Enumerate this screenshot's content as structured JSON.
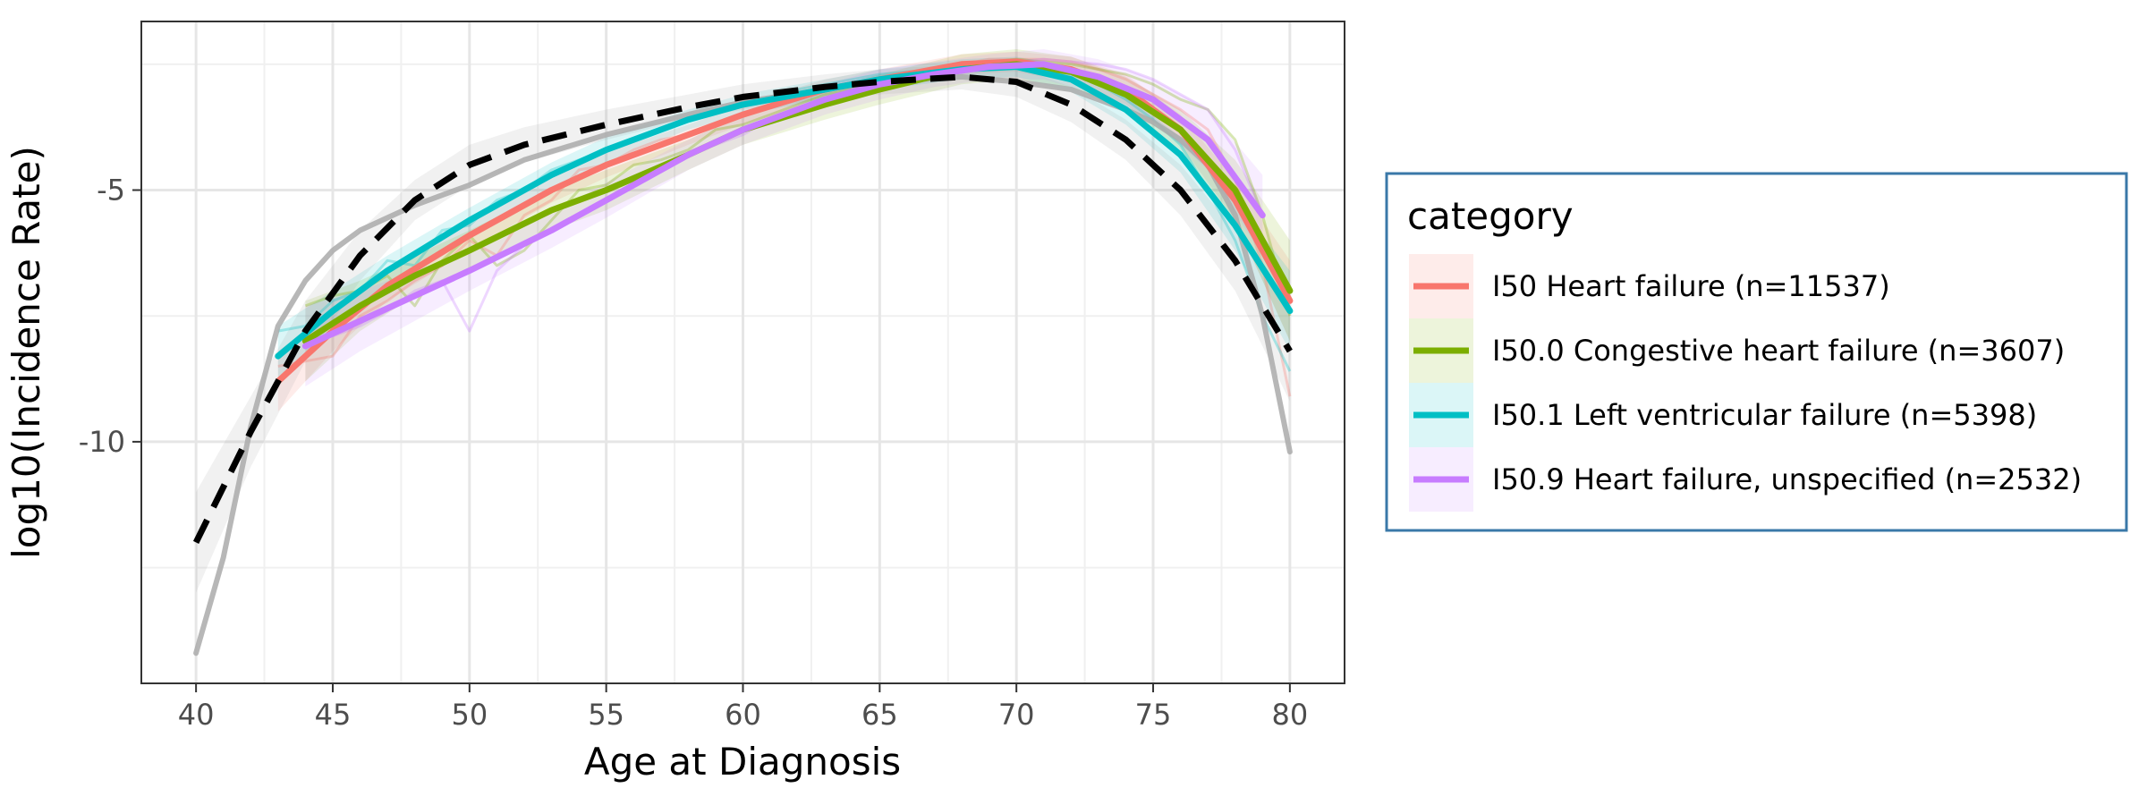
{
  "chart_data": {
    "type": "line",
    "title": "",
    "xlabel": "Age at Diagnosis",
    "ylabel": "log10(Incidence Rate)",
    "xlim": [
      38,
      82
    ],
    "ylim": [
      -14.8,
      -1.65
    ],
    "x_ticks": [
      40,
      45,
      50,
      55,
      60,
      65,
      70,
      75,
      80
    ],
    "y_ticks": [
      -5,
      -10
    ],
    "y_tick_labels": [
      "-5",
      "-10"
    ],
    "grid": true,
    "legend": {
      "title": "category",
      "position": "right",
      "items": [
        {
          "label": "I50 Heart failure (n=11537)",
          "color": "#F8766D"
        },
        {
          "label": "I50.0 Congestive heart failure (n=3607)",
          "color": "#7CAE00"
        },
        {
          "label": "I50.1 Left ventricular failure (n=5398)",
          "color": "#00BFC4"
        },
        {
          "label": "I50.9 Heart failure, unspecified (n=2532)",
          "color": "#C77CFF"
        }
      ]
    },
    "series": [
      {
        "name": "I50 Heart failure (n=11537)",
        "color": "#F8766D",
        "role": "smooth",
        "x": [
          43,
          45,
          47,
          50,
          53,
          55,
          58,
          60,
          63,
          65,
          68,
          70,
          72,
          74,
          76,
          78,
          80
        ],
        "y": [
          -8.8,
          -7.8,
          -6.9,
          -5.9,
          -5.0,
          -4.5,
          -3.9,
          -3.5,
          -3.0,
          -2.8,
          -2.5,
          -2.45,
          -2.6,
          -3.0,
          -3.8,
          -5.2,
          -7.2
        ]
      },
      {
        "name": "I50.0 Congestive heart failure (n=3607)",
        "color": "#7CAE00",
        "role": "smooth",
        "x": [
          44,
          46,
          48,
          50,
          53,
          55,
          58,
          60,
          63,
          65,
          68,
          70,
          72,
          74,
          76,
          78,
          80
        ],
        "y": [
          -8.0,
          -7.3,
          -6.7,
          -6.2,
          -5.4,
          -5.0,
          -4.3,
          -3.8,
          -3.3,
          -3.0,
          -2.6,
          -2.5,
          -2.65,
          -3.1,
          -3.8,
          -5.0,
          -7.0
        ]
      },
      {
        "name": "I50.1 Left ventricular failure (n=5398)",
        "color": "#00BFC4",
        "role": "smooth",
        "x": [
          43,
          45,
          47,
          50,
          53,
          55,
          58,
          60,
          63,
          65,
          68,
          70,
          72,
          74,
          76,
          78,
          80
        ],
        "y": [
          -8.3,
          -7.4,
          -6.6,
          -5.6,
          -4.7,
          -4.2,
          -3.6,
          -3.3,
          -3.0,
          -2.8,
          -2.6,
          -2.55,
          -2.8,
          -3.4,
          -4.3,
          -5.7,
          -7.4
        ]
      },
      {
        "name": "I50.9 Heart failure, unspecified (n=2532)",
        "color": "#C77CFF",
        "role": "smooth",
        "x": [
          44,
          46,
          48,
          50,
          53,
          55,
          58,
          60,
          63,
          65,
          67,
          69,
          71,
          73,
          75,
          77,
          79
        ],
        "y": [
          -8.1,
          -7.6,
          -7.1,
          -6.6,
          -5.8,
          -5.2,
          -4.3,
          -3.8,
          -3.2,
          -2.9,
          -2.7,
          -2.55,
          -2.5,
          -2.75,
          -3.2,
          -4.0,
          -5.5
        ]
      },
      {
        "name": "",
        "color": "#000000",
        "role": "overall-dashed",
        "x": [
          40,
          42,
          44,
          46,
          48,
          50,
          52,
          55,
          58,
          60,
          63,
          65,
          68,
          70,
          72,
          74,
          76,
          78,
          80
        ],
        "y": [
          -12.0,
          -9.8,
          -7.8,
          -6.3,
          -5.2,
          -4.5,
          -4.1,
          -3.7,
          -3.35,
          -3.15,
          -2.95,
          -2.85,
          -2.75,
          -2.85,
          -3.3,
          -4.0,
          -5.0,
          -6.4,
          -8.2
        ]
      },
      {
        "name": "",
        "color": "#aaaaaa",
        "role": "overall-raw",
        "x": [
          40,
          41,
          42,
          43,
          44,
          45,
          46,
          48,
          50,
          52,
          55,
          58,
          60,
          63,
          65,
          68,
          70,
          72,
          74,
          75,
          76,
          77,
          78,
          79,
          80
        ],
        "y": [
          -14.2,
          -12.3,
          -9.7,
          -7.7,
          -6.8,
          -6.2,
          -5.8,
          -5.3,
          -4.9,
          -4.4,
          -3.9,
          -3.5,
          -3.25,
          -3.0,
          -2.85,
          -2.75,
          -2.85,
          -3.0,
          -3.4,
          -3.65,
          -4.0,
          -4.5,
          -5.5,
          -7.5,
          -10.2
        ]
      }
    ],
    "raw_series": [
      {
        "color": "#F8766D",
        "x": [
          43,
          44,
          45,
          46,
          47,
          48,
          49,
          50,
          51,
          52,
          53,
          54,
          55,
          56,
          57,
          58,
          59,
          60,
          61,
          62,
          63,
          64,
          65,
          66,
          67,
          68,
          69,
          70,
          71,
          72,
          73,
          74,
          75,
          76,
          77,
          78,
          79,
          80
        ],
        "y": [
          -8.5,
          -8.4,
          -8.3,
          -7.5,
          -7.2,
          -6.8,
          -6.5,
          -6.0,
          -6.3,
          -5.5,
          -5.2,
          -4.6,
          -4.5,
          -4.2,
          -4.0,
          -3.9,
          -3.7,
          -3.5,
          -3.3,
          -3.1,
          -3.0,
          -2.9,
          -2.8,
          -2.7,
          -2.6,
          -2.5,
          -2.4,
          -2.4,
          -2.4,
          -2.45,
          -2.6,
          -2.8,
          -3.1,
          -3.4,
          -3.8,
          -4.8,
          -6.5,
          -9.1
        ]
      },
      {
        "color": "#7CAE00",
        "x": [
          44,
          45,
          46,
          47,
          48,
          49,
          50,
          51,
          52,
          53,
          54,
          55,
          56,
          57,
          58,
          59,
          60,
          61,
          62,
          63,
          64,
          65,
          66,
          67,
          68,
          69,
          70,
          71,
          72,
          73,
          74,
          75,
          76,
          77,
          78,
          79,
          80
        ],
        "y": [
          -7.3,
          -7.1,
          -7.0,
          -6.7,
          -7.3,
          -6.4,
          -5.9,
          -6.5,
          -6.2,
          -5.6,
          -5.0,
          -4.9,
          -4.5,
          -4.4,
          -4.2,
          -3.8,
          -3.7,
          -3.5,
          -3.3,
          -3.1,
          -3.0,
          -2.9,
          -2.7,
          -2.6,
          -2.5,
          -2.45,
          -2.4,
          -2.45,
          -2.5,
          -2.6,
          -2.7,
          -2.9,
          -3.2,
          -3.4,
          -4.0,
          -5.5,
          -7.5
        ]
      },
      {
        "color": "#00BFC4",
        "x": [
          43,
          44,
          45,
          46,
          47,
          48,
          49,
          50,
          51,
          52,
          53,
          54,
          55,
          56,
          57,
          58,
          59,
          60,
          61,
          62,
          63,
          64,
          65,
          66,
          67,
          68,
          69,
          70,
          71,
          72,
          73,
          74,
          75,
          76,
          77,
          78,
          79,
          80
        ],
        "y": [
          -7.8,
          -7.7,
          -7.2,
          -7.0,
          -6.4,
          -6.5,
          -5.8,
          -5.7,
          -5.2,
          -5.0,
          -4.6,
          -4.4,
          -4.2,
          -4.0,
          -3.8,
          -3.6,
          -3.4,
          -3.3,
          -3.2,
          -3.0,
          -2.9,
          -2.8,
          -2.7,
          -2.65,
          -2.6,
          -2.55,
          -2.5,
          -2.5,
          -2.6,
          -2.7,
          -2.9,
          -3.2,
          -3.6,
          -4.1,
          -5.0,
          -6.0,
          -7.5,
          -8.6
        ]
      },
      {
        "color": "#C77CFF",
        "x": [
          44,
          45,
          46,
          47,
          48,
          49,
          50,
          51,
          52,
          53,
          54,
          55,
          56,
          57,
          58,
          59,
          60,
          61,
          62,
          63,
          64,
          65,
          66,
          67,
          68,
          69,
          70,
          71,
          72,
          73,
          74,
          75,
          76,
          77,
          78,
          79
        ],
        "y": [
          -8.0,
          -7.9,
          -7.7,
          -7.4,
          -7.0,
          -6.8,
          -7.8,
          -6.6,
          -6.1,
          -5.8,
          -5.5,
          -5.2,
          -4.9,
          -4.6,
          -4.3,
          -4.1,
          -3.9,
          -3.6,
          -3.4,
          -3.2,
          -3.0,
          -2.9,
          -2.8,
          -2.7,
          -2.6,
          -2.5,
          -2.45,
          -2.4,
          -2.45,
          -2.5,
          -2.6,
          -2.8,
          -3.1,
          -3.4,
          -4.2,
          -5.5
        ]
      }
    ],
    "bands": [
      {
        "color": "#F8766D",
        "x": [
          43,
          45,
          47,
          50,
          53,
          55,
          58,
          60,
          63,
          65,
          68,
          70,
          72,
          74,
          76,
          78,
          80
        ],
        "lower": [
          -9.4,
          -8.2,
          -7.2,
          -6.2,
          -5.25,
          -4.75,
          -4.1,
          -3.7,
          -3.2,
          -3.0,
          -2.7,
          -2.65,
          -2.85,
          -3.3,
          -4.1,
          -5.6,
          -8.0
        ],
        "upper": [
          -8.2,
          -7.4,
          -6.6,
          -5.6,
          -4.75,
          -4.25,
          -3.7,
          -3.3,
          -2.8,
          -2.6,
          -2.3,
          -2.25,
          -2.35,
          -2.7,
          -3.5,
          -4.8,
          -6.4
        ]
      },
      {
        "color": "#7CAE00",
        "x": [
          44,
          46,
          48,
          50,
          53,
          55,
          58,
          60,
          63,
          65,
          68,
          70,
          72,
          74,
          76,
          78,
          80
        ],
        "lower": [
          -8.8,
          -7.8,
          -7.1,
          -6.6,
          -5.8,
          -5.4,
          -4.6,
          -4.1,
          -3.6,
          -3.3,
          -2.9,
          -2.8,
          -2.95,
          -3.45,
          -4.2,
          -5.6,
          -8.0
        ],
        "upper": [
          -7.2,
          -6.8,
          -6.3,
          -5.8,
          -5.0,
          -4.6,
          -4.0,
          -3.5,
          -3.0,
          -2.7,
          -2.3,
          -2.2,
          -2.35,
          -2.75,
          -3.4,
          -4.4,
          -6.0
        ]
      },
      {
        "color": "#00BFC4",
        "x": [
          43,
          45,
          47,
          50,
          53,
          55,
          58,
          60,
          63,
          65,
          68,
          70,
          72,
          74,
          76,
          78,
          80
        ],
        "lower": [
          -8.9,
          -7.8,
          -6.9,
          -5.85,
          -4.95,
          -4.45,
          -3.8,
          -3.5,
          -3.2,
          -3.0,
          -2.8,
          -2.75,
          -3.05,
          -3.7,
          -4.65,
          -6.2,
          -8.2
        ],
        "upper": [
          -7.7,
          -7.0,
          -6.3,
          -5.35,
          -4.45,
          -3.95,
          -3.4,
          -3.1,
          -2.8,
          -2.6,
          -2.4,
          -2.35,
          -2.55,
          -3.1,
          -3.95,
          -5.2,
          -6.6
        ]
      },
      {
        "color": "#C77CFF",
        "x": [
          44,
          46,
          48,
          50,
          53,
          55,
          58,
          60,
          63,
          65,
          67,
          69,
          71,
          73,
          75,
          77,
          79
        ],
        "lower": [
          -8.9,
          -8.2,
          -7.6,
          -7.0,
          -6.15,
          -5.55,
          -4.6,
          -4.1,
          -3.5,
          -3.2,
          -2.95,
          -2.8,
          -2.8,
          -3.1,
          -3.6,
          -4.6,
          -6.3
        ],
        "upper": [
          -7.3,
          -7.0,
          -6.6,
          -6.2,
          -5.45,
          -4.85,
          -4.0,
          -3.5,
          -2.9,
          -2.6,
          -2.45,
          -2.3,
          -2.2,
          -2.4,
          -2.8,
          -3.4,
          -4.7
        ]
      },
      {
        "color": "#999999",
        "x": [
          40,
          42,
          44,
          46,
          48,
          50,
          52,
          55,
          58,
          60,
          63,
          65,
          68,
          70,
          72,
          74,
          76,
          78,
          80
        ],
        "lower": [
          -13.0,
          -10.5,
          -8.4,
          -6.8,
          -5.6,
          -4.9,
          -4.45,
          -4.0,
          -3.6,
          -3.4,
          -3.2,
          -3.1,
          -3.0,
          -3.15,
          -3.65,
          -4.4,
          -5.5,
          -7.0,
          -9.2
        ],
        "upper": [
          -11.0,
          -9.1,
          -7.2,
          -5.8,
          -4.8,
          -4.1,
          -3.75,
          -3.4,
          -3.1,
          -2.9,
          -2.7,
          -2.6,
          -2.5,
          -2.55,
          -2.95,
          -3.6,
          -4.5,
          -5.8,
          -7.2
        ]
      }
    ]
  }
}
